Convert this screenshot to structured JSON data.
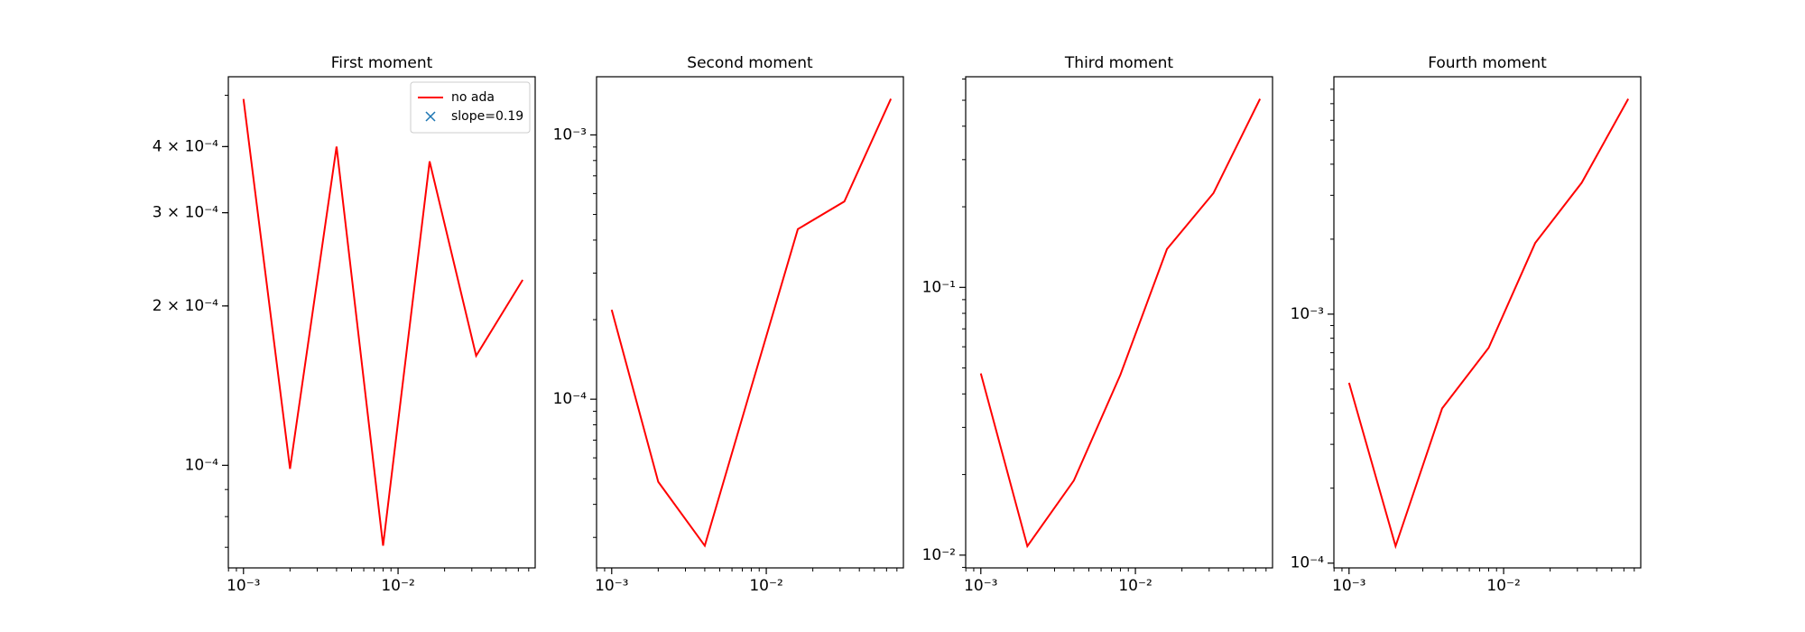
{
  "chart_data": [
    {
      "type": "line",
      "title": "First moment",
      "xscale": "log",
      "yscale": "log",
      "x": [
        0.001,
        0.002,
        0.004,
        0.008,
        0.016,
        0.032,
        0.064
      ],
      "series": [
        {
          "name": "no ada",
          "color": "#ff0000",
          "values": [
            0.000492,
            9.85e-05,
            0.0004,
            7.05e-05,
            0.000375,
            0.000161,
            0.000224
          ]
        }
      ],
      "markers": [
        {
          "name": "slope=0.19",
          "color": "#1f77b4",
          "marker": "x"
        }
      ],
      "legend": "upper right",
      "xlim": [
        0.000798,
        0.0771
      ],
      "ylim": [
        6.4e-05,
        0.000542
      ],
      "xticks": [
        {
          "value": 0.001,
          "label": "10⁻³"
        },
        {
          "value": 0.01,
          "label": "10⁻²"
        }
      ],
      "yticks": [
        {
          "value": 0.0001,
          "label": "10⁻⁴"
        },
        {
          "value": 0.0002,
          "label": "2 × 10⁻⁴"
        },
        {
          "value": 0.0003,
          "label": "3 × 10⁻⁴"
        },
        {
          "value": 0.0004,
          "label": "4 × 10⁻⁴"
        }
      ]
    },
    {
      "type": "line",
      "title": "Second moment",
      "xscale": "log",
      "yscale": "log",
      "x": [
        0.001,
        0.002,
        0.004,
        0.008,
        0.016,
        0.032,
        0.064
      ],
      "series": [
        {
          "color": "#ff0000",
          "values": [
            0.000218,
            4.87e-05,
            2.79e-05,
            0.000111,
            0.00044,
            0.00056,
            0.00137
          ]
        }
      ],
      "xlim": [
        0.000798,
        0.0771
      ],
      "ylim": [
        2.3e-05,
        0.00166
      ],
      "xticks": [
        {
          "value": 0.001,
          "label": "10⁻³"
        },
        {
          "value": 0.01,
          "label": "10⁻²"
        }
      ],
      "yticks": [
        {
          "value": 0.0001,
          "label": "10⁻⁴"
        },
        {
          "value": 0.001,
          "label": "10⁻³"
        }
      ]
    },
    {
      "type": "line",
      "title": "Third moment",
      "xscale": "log",
      "yscale": "log",
      "x": [
        0.001,
        0.002,
        0.004,
        0.008,
        0.016,
        0.032,
        0.064
      ],
      "series": [
        {
          "color": "#ff0000",
          "values": [
            0.0477,
            0.0108,
            0.019,
            0.0472,
            0.139,
            0.225,
            0.506
          ]
        }
      ],
      "xlim": [
        0.000798,
        0.0771
      ],
      "ylim": [
        0.00896,
        0.612
      ],
      "xticks": [
        {
          "value": 0.001,
          "label": "10⁻³"
        },
        {
          "value": 0.01,
          "label": "10⁻²"
        }
      ],
      "yticks": [
        {
          "value": 0.01,
          "label": "10⁻²"
        },
        {
          "value": 0.1,
          "label": "10⁻¹"
        }
      ]
    },
    {
      "type": "line",
      "title": "Fourth moment",
      "xscale": "log",
      "yscale": "log",
      "x": [
        0.001,
        0.002,
        0.004,
        0.008,
        0.016,
        0.032,
        0.064
      ],
      "series": [
        {
          "color": "#ff0000",
          "values": [
            0.00053,
            0.000117,
            0.000418,
            0.000732,
            0.00193,
            0.00337,
            0.00732
          ]
        }
      ],
      "xlim": [
        0.000798,
        0.0771
      ],
      "ylim": [
        9.57e-05,
        0.00898
      ],
      "xticks": [
        {
          "value": 0.001,
          "label": "10⁻³"
        },
        {
          "value": 0.01,
          "label": "10⁻²"
        }
      ],
      "yticks": [
        {
          "value": 0.0001,
          "label": "10⁻⁴"
        },
        {
          "value": 0.001,
          "label": "10⁻³"
        }
      ]
    }
  ]
}
